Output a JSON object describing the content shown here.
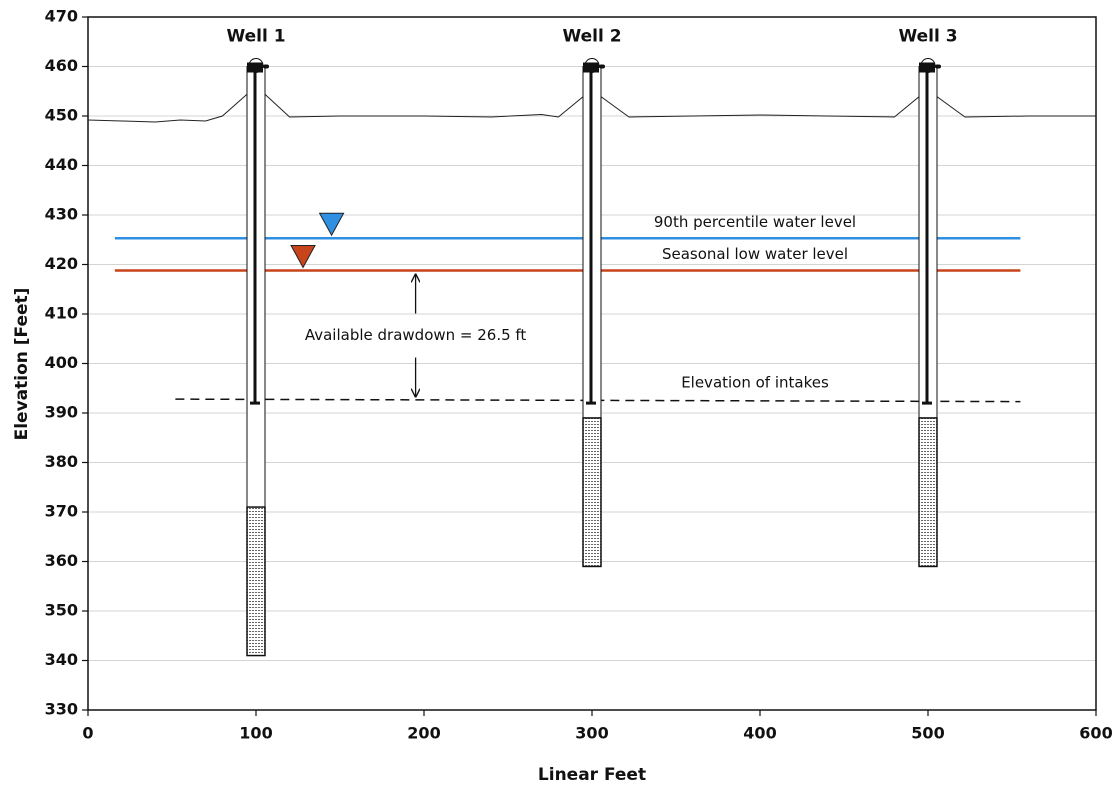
{
  "chart_data": {
    "type": "well-section",
    "x_label": "Linear Feet",
    "y_label": "Elevation [Feet]",
    "xlim": [
      0,
      600
    ],
    "xticks": [
      0,
      100,
      200,
      300,
      400,
      500,
      600
    ],
    "ylim": [
      330,
      470
    ],
    "yticks": [
      330,
      340,
      350,
      360,
      370,
      380,
      390,
      400,
      410,
      420,
      430,
      440,
      450,
      460,
      470
    ],
    "grid": true,
    "ground": {
      "color": "#222222",
      "x": [
        0,
        20,
        40,
        55,
        70,
        80,
        95,
        105,
        120,
        150,
        200,
        240,
        270,
        280,
        295,
        305,
        322,
        360,
        400,
        440,
        480,
        495,
        505,
        522,
        560,
        600
      ],
      "values": [
        449.2,
        449,
        448.8,
        449.2,
        449,
        450,
        454.5,
        454.5,
        449.8,
        450,
        450,
        449.8,
        450.3,
        449.8,
        454,
        454,
        449.8,
        450,
        450.2,
        450,
        449.8,
        454,
        454,
        449.8,
        450,
        450
      ]
    },
    "levels": [
      {
        "name": "90th percentile water level",
        "color": "#2e8fe3",
        "x": [
          16,
          555
        ],
        "values": [
          425.3,
          425.3
        ],
        "marker_x": 145
      },
      {
        "name": "Seasonal low water level",
        "color": "#c8441a",
        "x": [
          16,
          555
        ],
        "values": [
          418.8,
          418.8
        ],
        "marker_x": 128
      },
      {
        "name": "Elevation of intakes",
        "color": "#111111",
        "x": [
          52,
          555
        ],
        "values": [
          392.8,
          392.3
        ],
        "dash": true
      }
    ],
    "wells": [
      {
        "name": "Well 1",
        "x": 100,
        "top": 460,
        "pump_intake": 392,
        "screen_top": 371,
        "screen_bottom": 341
      },
      {
        "name": "Well 2",
        "x": 300,
        "top": 460,
        "pump_intake": 392,
        "screen_top": 389,
        "screen_bottom": 359
      },
      {
        "name": "Well 3",
        "x": 500,
        "top": 460,
        "pump_intake": 392,
        "screen_top": 389,
        "screen_bottom": 359
      }
    ],
    "drawdown": {
      "label": "Available drawdown = 26.5 ft",
      "x": 195,
      "from": 418.8,
      "to": 392.5
    }
  }
}
